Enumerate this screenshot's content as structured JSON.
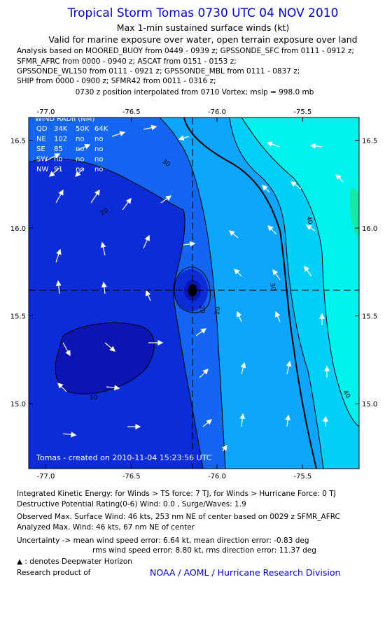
{
  "header": {
    "title": "Tropical Storm Tomas 0730 UTC 04 NOV 2010",
    "subtitle1": "Max 1-min sustained surface winds (kt)",
    "subtitle2": "Valid for marine exposure over water, open terrain exposure over land",
    "analysis_lines": [
      "Analysis based on MOORED_BUOY from 0449 - 0939 z; GPSSONDE_SFC from 0111 - 0912 z;",
      "SFMR_AFRC from 0000 - 0940 z; ASCAT from 0151 - 0153 z;",
      "GPSSONDE_WL150 from 0111 - 0921 z; GPSSONDE_MBL from 0111 - 0837 z;",
      "SHIP from 0000 - 0900 z; SFMR42 from 0011 - 0316 z;"
    ],
    "position_note": "0730 z position interpolated from 0710 Vortex; mslp = 998.0 mb"
  },
  "map": {
    "lon_ticks": [
      "-77.0",
      "-76.5",
      "-76.0",
      "-75.5"
    ],
    "lat_ticks": [
      "16.5",
      "16.0",
      "15.5",
      "15.0"
    ],
    "lon_range": [
      -77.1,
      -75.17
    ],
    "lat_range": [
      14.63,
      16.63
    ],
    "center": {
      "lon": -76.06,
      "lat": 15.63
    },
    "contour_labels": [
      "30",
      "20",
      "20",
      "10",
      "10",
      "20",
      "30",
      "40",
      "40"
    ],
    "credit": "Tomas - created on 2010-11-04 15:23:56 UTC",
    "colors": {
      "band_10_20": "#0c2cd8",
      "band_20_30": "#1466f2",
      "band_30_34": "#0ea6fc",
      "band_34_40": "#00d0f8",
      "band_40_50": "#00f2ee",
      "band_50_plus": "#16e8a8",
      "band_under_10": "#0c14b4",
      "contour": "#000000"
    },
    "wind_radii": {
      "title": "WIND RADII (NM)",
      "header": [
        "QD",
        "34K",
        "50K",
        "64K"
      ],
      "rows": [
        [
          "NE",
          "102",
          "no",
          "no"
        ],
        [
          "SE",
          "85",
          "no",
          "no"
        ],
        [
          "SW",
          "no",
          "no",
          "no"
        ],
        [
          "NW",
          "91",
          "no",
          "no"
        ]
      ]
    }
  },
  "footer": {
    "ike_line": "Integrated Kinetic Energy:  for Winds > TS force: 7 TJ,  for Winds > Hurricane Force: 0 TJ",
    "dpr_line": "Destructive Potential Rating(0-6)   Wind: 0.0 , Surge/Waves: 1.9",
    "obs_line": "Observed Max. Surface Wind: 46 kts, 253 nm NE of center based on 0029 z SFMR_AFRC",
    "analyzed_line": "Analyzed Max. Wind: 46 kts, 67 nm NE of center",
    "uncertainty_line1": "Uncertainty -> mean wind speed error: 6.64 kt,   mean direction error:  -0.83 deg",
    "uncertainty_line2": "rms wind speed error: 8.80 kt,   rms direction error: 11.37 deg",
    "legend_symbol": "▲",
    "legend_text": ": denotes Deepwater Horizon",
    "research_label": "Research product of",
    "research_org": "NOAA / AOML / Hurricane Research Division"
  }
}
